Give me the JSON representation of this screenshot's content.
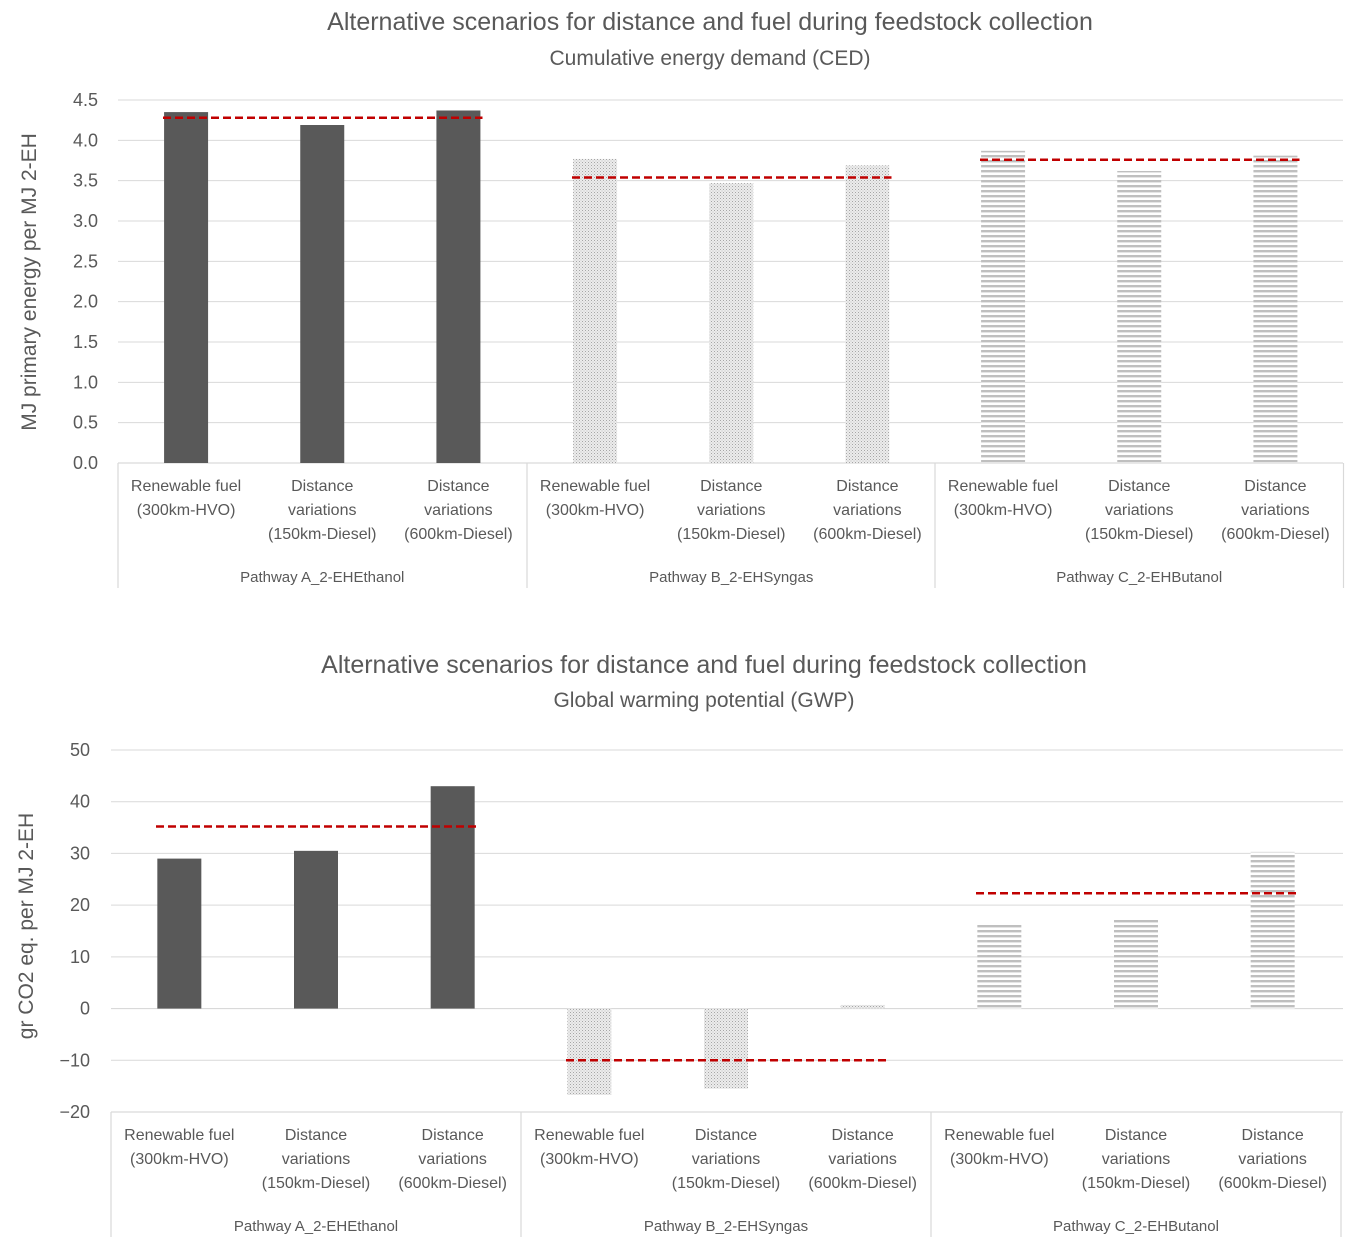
{
  "chart_data": [
    {
      "id": "ced",
      "type": "bar",
      "title": "Alternative scenarios for distance and fuel during feedstock collection",
      "subtitle": "Cumulative energy demand (CED)",
      "ylabel": "MJ primary energy per MJ 2-EH",
      "ylim": [
        0,
        4.5
      ],
      "yticks": [
        "0.0",
        "0.5",
        "1.0",
        "1.5",
        "2.0",
        "2.5",
        "3.0",
        "3.5",
        "4.0",
        "4.5"
      ],
      "grid": true,
      "groups": [
        {
          "label": "Pathway A_2-EHEthanol",
          "pattern": "solid",
          "color": "#595959",
          "reference": 4.28,
          "categories": [
            {
              "line1": "Renewable fuel",
              "line2": "(300km-HVO)",
              "value": 4.35
            },
            {
              "line1": "Distance",
              "line2": "variations",
              "line3": "(150km-Diesel)",
              "value": 4.19
            },
            {
              "line1": "Distance",
              "line2": "variations",
              "line3": "(600km-Diesel)",
              "value": 4.37
            }
          ]
        },
        {
          "label": "Pathway B_2-EHSyngas",
          "pattern": "dots",
          "color": "#d9d9d9",
          "reference": 3.54,
          "categories": [
            {
              "line1": "Renewable fuel",
              "line2": "(300km-HVO)",
              "value": 3.77
            },
            {
              "line1": "Distance",
              "line2": "variations",
              "line3": "(150km-Diesel)",
              "value": 3.47
            },
            {
              "line1": "Distance",
              "line2": "variations",
              "line3": "(600km-Diesel)",
              "value": 3.69
            }
          ]
        },
        {
          "label": "Pathway C_2-EHButanol",
          "pattern": "hlines",
          "color": "#bfbfbf",
          "reference": 3.76,
          "categories": [
            {
              "line1": "Renewable fuel",
              "line2": "(300km-HVO)",
              "value": 3.87
            },
            {
              "line1": "Distance",
              "line2": "variations",
              "line3": "(150km-Diesel)",
              "value": 3.62
            },
            {
              "line1": "Distance",
              "line2": "variations",
              "line3": "(600km-Diesel)",
              "value": 3.81
            }
          ]
        }
      ],
      "reference_color": "#c00000"
    },
    {
      "id": "gwp",
      "type": "bar",
      "title": "Alternative scenarios for distance and fuel during feedstock collection",
      "subtitle": "Global warming potential (GWP)",
      "ylabel": "gr CO2 eq. per MJ 2-EH",
      "ylim": [
        -20,
        50
      ],
      "yticks": [
        "−20",
        "−10",
        "0",
        "10",
        "20",
        "30",
        "40",
        "50"
      ],
      "grid": true,
      "groups": [
        {
          "label": "Pathway A_2-EHEthanol",
          "pattern": "solid",
          "color": "#595959",
          "reference": 35.2,
          "categories": [
            {
              "line1": "Renewable fuel",
              "line2": "(300km-HVO)",
              "value": 29.0
            },
            {
              "line1": "Distance",
              "line2": "variations",
              "line3": "(150km-Diesel)",
              "value": 30.5
            },
            {
              "line1": "Distance",
              "line2": "variations",
              "line3": "(600km-Diesel)",
              "value": 43.0
            }
          ]
        },
        {
          "label": "Pathway B_2-EHSyngas",
          "pattern": "dots",
          "color": "#d9d9d9",
          "reference": -10.0,
          "categories": [
            {
              "line1": "Renewable fuel",
              "line2": "(300km-HVO)",
              "value": -16.7
            },
            {
              "line1": "Distance",
              "line2": "variations",
              "line3": "(150km-Diesel)",
              "value": -15.5
            },
            {
              "line1": "Distance",
              "line2": "variations",
              "line3": "(600km-Diesel)",
              "value": 0.7
            }
          ]
        },
        {
          "label": "Pathway C_2-EHButanol",
          "pattern": "hlines",
          "color": "#bfbfbf",
          "reference": 22.3,
          "categories": [
            {
              "line1": "Renewable fuel",
              "line2": "(300km-HVO)",
              "value": 16.3
            },
            {
              "line1": "Distance",
              "line2": "variations",
              "line3": "(150km-Diesel)",
              "value": 17.3
            },
            {
              "line1": "Distance",
              "line2": "variations",
              "line3": "(600km-Diesel)",
              "value": 30.3
            }
          ]
        }
      ],
      "reference_color": "#c00000"
    }
  ]
}
